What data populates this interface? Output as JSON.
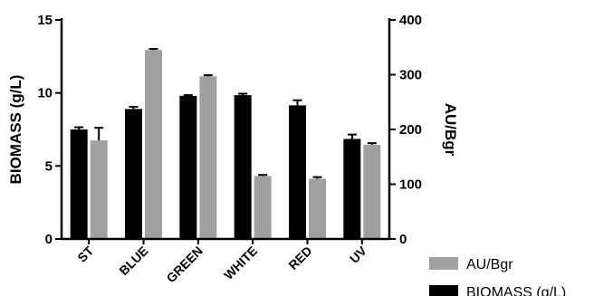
{
  "chart_data": {
    "type": "bar",
    "categories": [
      "ST",
      "BLUE",
      "GREEN",
      "WHITE",
      "RED",
      "UV"
    ],
    "series": [
      {
        "name": "BIOMASS (g/L)",
        "axis": "left",
        "color": "#000000",
        "values": [
          7.5,
          8.9,
          9.8,
          9.85,
          9.15,
          6.85
        ],
        "errors": [
          0.15,
          0.15,
          0.05,
          0.1,
          0.35,
          0.3
        ]
      },
      {
        "name": "AU/Bgr",
        "axis": "right",
        "color": "#a0a0a0",
        "values": [
          180,
          345,
          297,
          115,
          110,
          172
        ],
        "errors": [
          23,
          2,
          2,
          2,
          3,
          3
        ]
      }
    ],
    "ylabel": "BIOMASS (g/L)",
    "y2label": "AU/Bgr",
    "ylim": [
      0,
      15
    ],
    "y2lim": [
      0,
      400
    ],
    "yticks": [
      0,
      5,
      10,
      15
    ],
    "y2ticks": [
      0,
      100,
      200,
      300,
      400
    ],
    "legend_position": "bottom-right",
    "legend_order": [
      "AU/Bgr",
      "BIOMASS (g/L)"
    ]
  }
}
